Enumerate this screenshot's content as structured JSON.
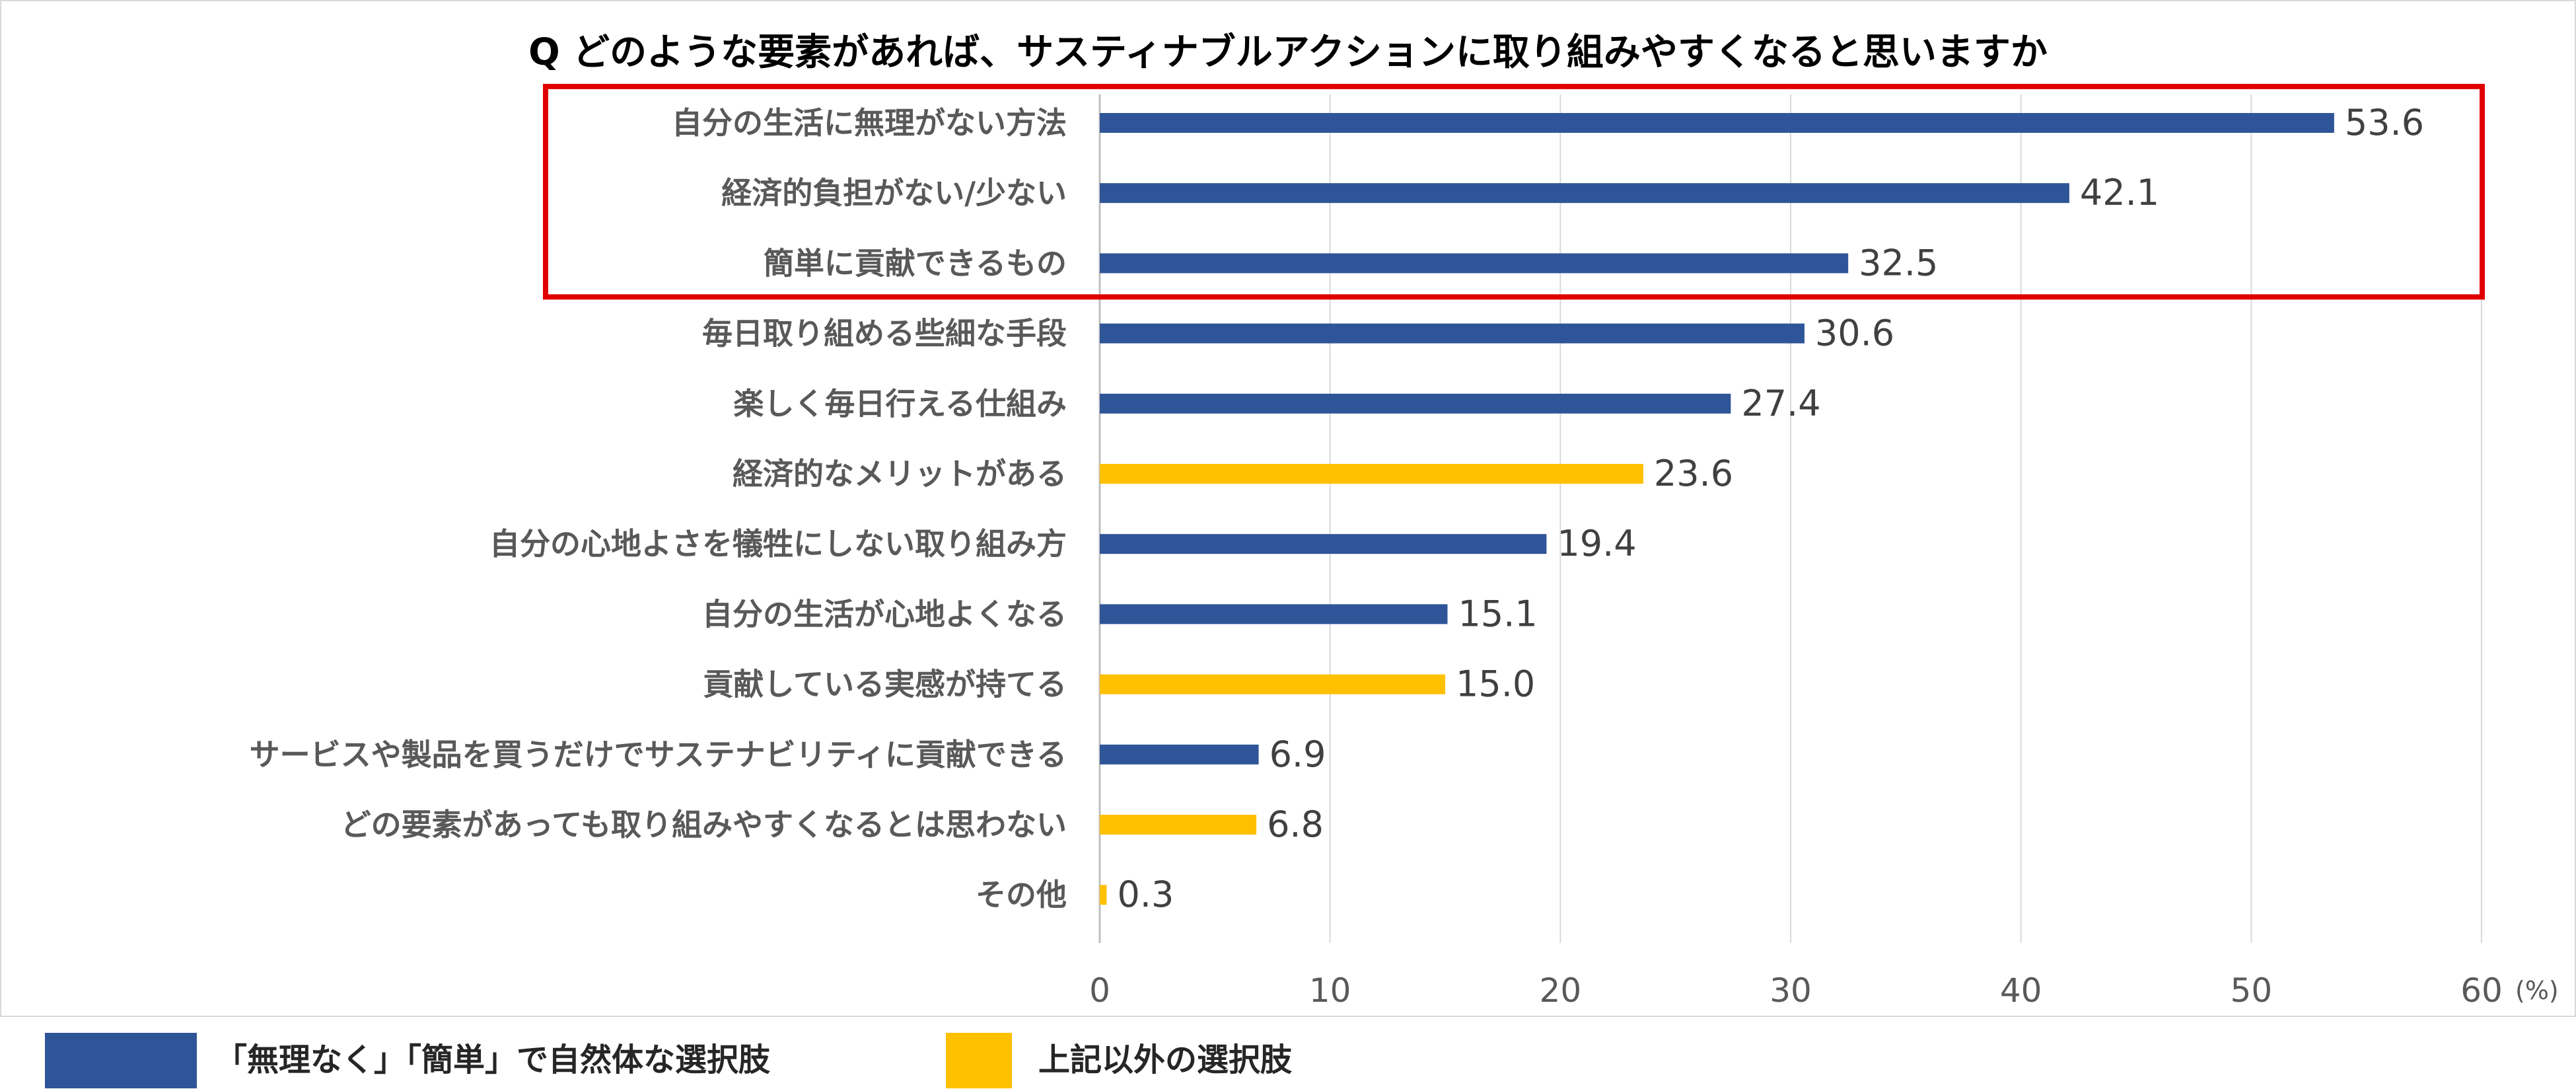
{
  "chart_data": {
    "type": "bar",
    "orientation": "horizontal",
    "title": "Q どのような要素があれば、サスティナブルアクションに取り組みやすくなると思いますか",
    "categories": [
      "自分の生活に無理がない方法",
      "経済的負担がない/少ない",
      "簡単に貢献できるもの",
      "毎日取り組める些細な手段",
      "楽しく毎日行える仕組み",
      "経済的なメリットがある",
      "自分の心地よさを犠牲にしない取り組み方",
      "自分の生活が心地よくなる",
      "貢献している実感が持てる",
      "サービスや製品を買うだけでサステナビリティに貢献できる",
      "どの要素があっても取り組みやすくなるとは思わない",
      "その他"
    ],
    "values": [
      53.6,
      42.1,
      32.5,
      30.6,
      27.4,
      23.6,
      19.4,
      15.1,
      15.0,
      6.9,
      6.8,
      0.3
    ],
    "value_labels": [
      "53.6",
      "42.1",
      "32.5",
      "30.6",
      "27.4",
      "23.6",
      "19.4",
      "15.1",
      "15.0",
      "6.9",
      "6.8",
      "0.3"
    ],
    "groups": [
      "natural",
      "natural",
      "natural",
      "natural",
      "natural",
      "other",
      "natural",
      "natural",
      "other",
      "natural",
      "other",
      "other"
    ],
    "highlighted_top_n": 3,
    "xlim": [
      0,
      60
    ],
    "xticks": [
      "0",
      "10",
      "20",
      "30",
      "40",
      "50",
      "60"
    ],
    "x_unit": "(%)",
    "grid": "vertical",
    "legend": [
      {
        "key": "natural",
        "label": "「無理なく」「簡単」で自然体な選択肢",
        "color": "#2E5597"
      },
      {
        "key": "other",
        "label": "上記以外の選択肢",
        "color": "#FFC000"
      }
    ],
    "legend_position": "bottom-left",
    "colors": {
      "natural": "#2E5597",
      "other": "#FFC000",
      "highlight_box": "#E00000",
      "grid": "#D9D9D9",
      "category_text": "#595959",
      "value_text": "#404040",
      "title_text": "#000000"
    }
  }
}
